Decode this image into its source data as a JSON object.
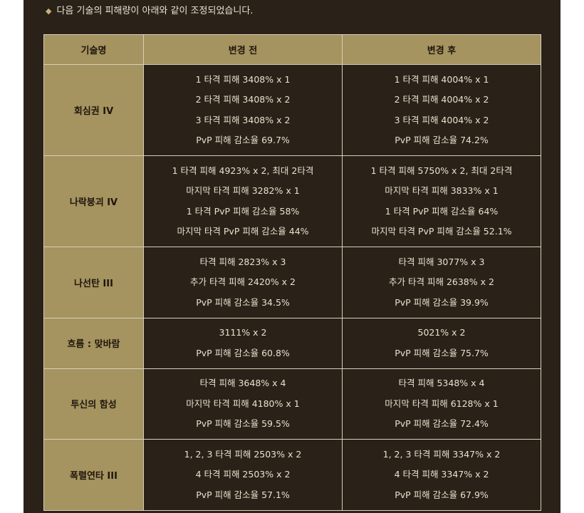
{
  "intro": {
    "bullet": "◆",
    "text": "다음 기술의 피해량이 아래와 같이 조정되었습니다."
  },
  "table": {
    "headers": {
      "name": "기술명",
      "before": "변경 전",
      "after": "변경 후"
    },
    "rows": [
      {
        "name": "회심권 IV",
        "before": [
          "1 타격 피해 3408% x 1",
          "2 타격 피해 3408% x 2",
          "3 타격 피해 3408% x 2",
          "PvP 피해 감소율 69.7%"
        ],
        "after": [
          "1 타격 피해 4004% x 1",
          "2 타격 피해 4004% x 2",
          "3 타격 피해 4004% x 2",
          "PvP 피해 감소율 74.2%"
        ]
      },
      {
        "name": "나락붕괴 IV",
        "before": [
          "1 타격 피해 4923% x 2, 최대 2타격",
          "마지막 타격 피해 3282% x 1",
          "1 타격 PvP 피해 감소율 58%",
          "마지막 타격 PvP 피해 감소율 44%"
        ],
        "after": [
          "1 타격 피해 5750% x 2, 최대 2타격",
          "마지막 타격 피해 3833% x 1",
          "1 타격 PvP 피해 감소율 64%",
          "마지막 타격 PvP 피해 감소율 52.1%"
        ]
      },
      {
        "name": "나선탄 III",
        "before": [
          "타격 피해 2823% x 3",
          "추가 타격 피해 2420% x 2",
          "PvP 피해 감소율 34.5%"
        ],
        "after": [
          "타격 피해 3077% x 3",
          "추가 타격 피해 2638% x 2",
          "PvP 피해 감소율 39.9%"
        ]
      },
      {
        "name": "흐름 : 맞바람",
        "before": [
          "3111% x 2",
          "PvP 피해 감소율 60.8%"
        ],
        "after": [
          "5021% x 2",
          "PvP 피해 감소율 75.7%"
        ]
      },
      {
        "name": "투신의 함성",
        "before": [
          "타격 피해 3648% x 4",
          "마지막 타격 피해 4180% x 1",
          "PvP 피해 감소율 59.5%"
        ],
        "after": [
          "타격 피해 5348% x 4",
          "마지막 타격 피해 6128% x 1",
          "PvP 피해 감소율 72.4%"
        ]
      },
      {
        "name": "폭렬연타 III",
        "before": [
          "1, 2, 3 타격 피해 2503% x 2",
          "4 타격 피해 2503% x 2",
          "PvP 피해 감소율 57.1%"
        ],
        "after": [
          "1, 2, 3 타격 피해 3347% x 2",
          "4 타격 피해 3347% x 2",
          "PvP 피해 감소율 67.9%"
        ]
      }
    ]
  }
}
